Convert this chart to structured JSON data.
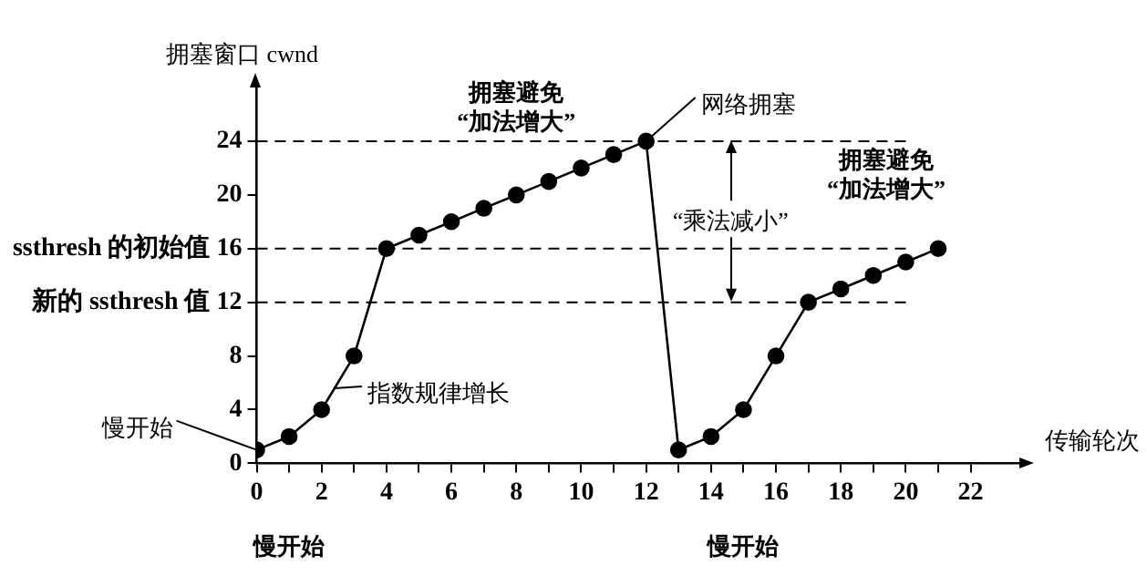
{
  "chart_data": {
    "type": "line",
    "xlabel": "传输轮次",
    "ylabel": "拥塞窗口 cwnd",
    "x": [
      0,
      1,
      2,
      3,
      4,
      5,
      6,
      7,
      8,
      9,
      10,
      11,
      12,
      13,
      14,
      15,
      16,
      17,
      18,
      19,
      20,
      21
    ],
    "series": [
      {
        "color": "#000000",
        "values": [
          1,
          2,
          4,
          8,
          16,
          17,
          18,
          19,
          20,
          21,
          22,
          23,
          24,
          1,
          2,
          4,
          8,
          12,
          13,
          14,
          15,
          16
        ]
      }
    ],
    "xlim": [
      0,
      23.5
    ],
    "ylim": [
      0,
      28
    ],
    "xticks": [
      0,
      {
        "value": 1,
        "label": null
      },
      2,
      {
        "value": 3,
        "label": null
      },
      4,
      {
        "value": 5,
        "label": null
      },
      6,
      {
        "value": 7,
        "label": null
      },
      8,
      {
        "value": 9,
        "label": null
      },
      10,
      {
        "value": 11,
        "label": null
      },
      12,
      {
        "value": 13,
        "label": null
      },
      14,
      {
        "value": 15,
        "label": null
      },
      16,
      {
        "value": 17,
        "label": null
      },
      18,
      {
        "value": 19,
        "label": null
      },
      20,
      {
        "value": 21,
        "label": null
      },
      22
    ],
    "yticks": [
      0,
      4,
      8,
      {
        "value": 12,
        "label": "新的 ssthresh 值 12"
      },
      {
        "value": 16,
        "label": "ssthresh 的初始值 16"
      },
      20,
      24
    ],
    "ref_lines": [
      {
        "axis": "y",
        "value": 24,
        "line_style": "dashed"
      },
      {
        "axis": "y",
        "value": 16,
        "line_style": "dashed"
      },
      {
        "axis": "y",
        "value": 12,
        "line_style": "dashed"
      }
    ],
    "annotations": [
      "拥塞避免\n“加法增大”",
      {
        "text": "网络拥塞",
        "x": 12,
        "y": 24
      },
      "“乘法减小”",
      "拥塞避免\n“加法增大”",
      {
        "text": "指数规律增长",
        "x": 2.4,
        "y": 5.6
      },
      {
        "text": "慢开始",
        "x": 0,
        "y": 1
      },
      "慢开始",
      "慢开始"
    ],
    "grid": false,
    "legend": false,
    "marker": "circle",
    "line_style": "solid"
  }
}
